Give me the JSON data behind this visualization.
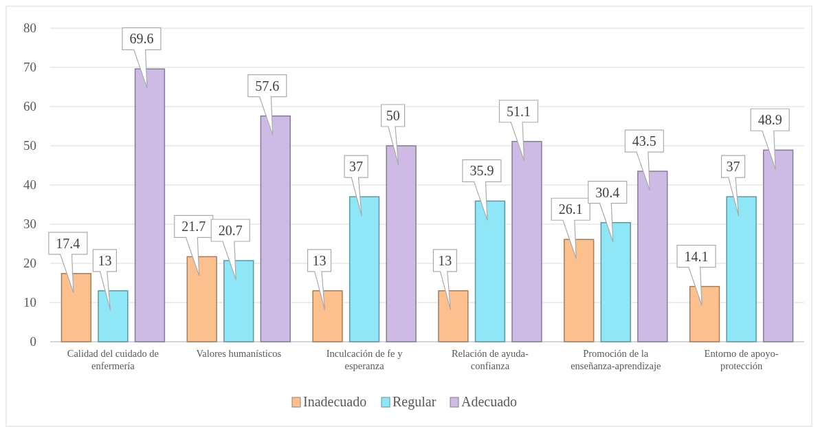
{
  "chart_data": {
    "type": "bar",
    "categories": [
      "Calidad del cuidado de enfermería",
      "Valores humanísticos",
      "Inculcación de fe y esperanza",
      "Relación de ayuda-confianza",
      "Promoción de la enseñanza-aprendizaje",
      "Entorno de apoyo-protección"
    ],
    "series": [
      {
        "name": "Inadecuado",
        "color": "#fbc08e",
        "values": [
          17.4,
          21.7,
          13,
          13,
          26.1,
          14.1
        ]
      },
      {
        "name": "Regular",
        "color": "#8fe6f7",
        "values": [
          13,
          20.7,
          37,
          35.9,
          30.4,
          37
        ]
      },
      {
        "name": "Adecuado",
        "color": "#cdbbe6",
        "values": [
          69.6,
          57.6,
          50,
          51.1,
          43.5,
          48.9
        ]
      }
    ],
    "ylim": [
      0,
      80
    ],
    "yticks": [
      0,
      10,
      20,
      30,
      40,
      50,
      60,
      70,
      80
    ],
    "grid": "y",
    "legend": "bottom",
    "data_labels": true
  }
}
